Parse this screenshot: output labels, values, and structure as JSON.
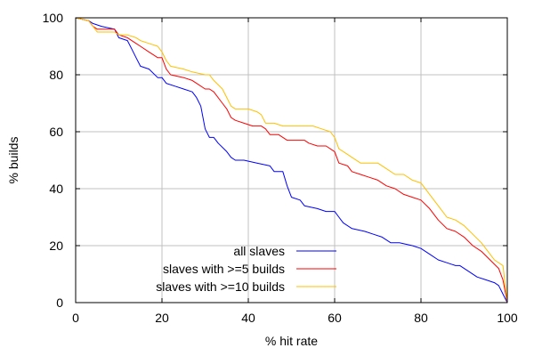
{
  "chart_data": {
    "type": "line",
    "xlabel": "% hit rate",
    "ylabel": "% builds",
    "xlim": [
      0,
      100
    ],
    "ylim": [
      0,
      100
    ],
    "x_ticks": [
      0,
      20,
      40,
      60,
      80,
      100
    ],
    "y_ticks": [
      0,
      20,
      40,
      60,
      80,
      100
    ],
    "grid": true,
    "legend_position": "bottom-center",
    "series": [
      {
        "name": "all slaves",
        "color": "#0000ff",
        "points": [
          [
            0,
            100
          ],
          [
            3,
            99
          ],
          [
            4,
            98
          ],
          [
            6,
            97
          ],
          [
            9,
            96
          ],
          [
            10,
            93
          ],
          [
            12,
            92
          ],
          [
            13,
            89
          ],
          [
            14,
            86
          ],
          [
            15,
            83
          ],
          [
            17,
            82
          ],
          [
            19,
            79
          ],
          [
            20,
            79
          ],
          [
            21,
            77
          ],
          [
            23,
            76
          ],
          [
            25,
            75
          ],
          [
            27,
            74
          ],
          [
            28,
            72
          ],
          [
            29,
            69
          ],
          [
            30,
            61
          ],
          [
            31,
            58
          ],
          [
            32,
            58
          ],
          [
            33,
            56
          ],
          [
            35,
            53
          ],
          [
            36,
            51
          ],
          [
            37,
            50
          ],
          [
            39,
            50
          ],
          [
            42,
            49
          ],
          [
            45,
            48
          ],
          [
            46,
            46
          ],
          [
            48,
            46
          ],
          [
            49,
            41
          ],
          [
            50,
            37
          ],
          [
            52,
            36
          ],
          [
            53,
            34
          ],
          [
            56,
            33
          ],
          [
            58,
            32
          ],
          [
            60,
            32
          ],
          [
            61,
            30
          ],
          [
            62,
            28
          ],
          [
            64,
            26
          ],
          [
            67,
            25
          ],
          [
            69,
            24
          ],
          [
            71,
            23
          ],
          [
            73,
            21
          ],
          [
            75,
            21
          ],
          [
            78,
            20
          ],
          [
            80,
            19
          ],
          [
            82,
            17
          ],
          [
            84,
            15
          ],
          [
            86,
            14
          ],
          [
            88,
            13
          ],
          [
            89,
            13
          ],
          [
            91,
            11
          ],
          [
            93,
            9
          ],
          [
            95,
            8
          ],
          [
            97,
            7
          ],
          [
            98,
            6
          ],
          [
            99,
            3
          ],
          [
            100,
            0
          ]
        ]
      },
      {
        "name": "slaves with >=5 builds",
        "color": "#ff0000",
        "points": [
          [
            0,
            100
          ],
          [
            3,
            99
          ],
          [
            4,
            97
          ],
          [
            5,
            96
          ],
          [
            9,
            96
          ],
          [
            10,
            94
          ],
          [
            12,
            93
          ],
          [
            14,
            91
          ],
          [
            15,
            90
          ],
          [
            17,
            88
          ],
          [
            18,
            87
          ],
          [
            19,
            86
          ],
          [
            20,
            86
          ],
          [
            21,
            82
          ],
          [
            22,
            80
          ],
          [
            25,
            79
          ],
          [
            27,
            78
          ],
          [
            28,
            77
          ],
          [
            30,
            75
          ],
          [
            31,
            75
          ],
          [
            32,
            74
          ],
          [
            34,
            70
          ],
          [
            35,
            68
          ],
          [
            36,
            65
          ],
          [
            37,
            64
          ],
          [
            39,
            63
          ],
          [
            41,
            62
          ],
          [
            43,
            62
          ],
          [
            44,
            61
          ],
          [
            45,
            59
          ],
          [
            47,
            59
          ],
          [
            49,
            57
          ],
          [
            53,
            57
          ],
          [
            54,
            56
          ],
          [
            56,
            55
          ],
          [
            58,
            55
          ],
          [
            60,
            53
          ],
          [
            61,
            49
          ],
          [
            63,
            48
          ],
          [
            64,
            46
          ],
          [
            66,
            45
          ],
          [
            68,
            44
          ],
          [
            70,
            43
          ],
          [
            72,
            41
          ],
          [
            74,
            40
          ],
          [
            76,
            38
          ],
          [
            78,
            37
          ],
          [
            80,
            36
          ],
          [
            82,
            33
          ],
          [
            84,
            29
          ],
          [
            86,
            26
          ],
          [
            88,
            25
          ],
          [
            90,
            23
          ],
          [
            92,
            20
          ],
          [
            94,
            18
          ],
          [
            96,
            15
          ],
          [
            98,
            12
          ],
          [
            99,
            8
          ],
          [
            100,
            0
          ]
        ]
      },
      {
        "name": "slaves with >=10 builds",
        "color": "#ffc000",
        "points": [
          [
            0,
            100
          ],
          [
            3,
            99
          ],
          [
            4,
            97
          ],
          [
            5,
            95
          ],
          [
            9,
            95
          ],
          [
            10,
            94
          ],
          [
            12,
            94
          ],
          [
            14,
            93
          ],
          [
            15,
            92
          ],
          [
            17,
            91
          ],
          [
            19,
            90
          ],
          [
            20,
            88
          ],
          [
            21,
            85
          ],
          [
            22,
            83
          ],
          [
            25,
            82
          ],
          [
            27,
            81
          ],
          [
            30,
            80
          ],
          [
            31,
            80
          ],
          [
            32,
            78
          ],
          [
            34,
            75
          ],
          [
            35,
            72
          ],
          [
            36,
            69
          ],
          [
            37,
            68
          ],
          [
            40,
            68
          ],
          [
            42,
            67
          ],
          [
            43,
            66
          ],
          [
            44,
            63
          ],
          [
            46,
            63
          ],
          [
            48,
            62
          ],
          [
            53,
            62
          ],
          [
            55,
            62
          ],
          [
            57,
            61
          ],
          [
            59,
            60
          ],
          [
            60,
            58
          ],
          [
            61,
            54
          ],
          [
            63,
            52
          ],
          [
            64,
            51
          ],
          [
            66,
            49
          ],
          [
            70,
            49
          ],
          [
            72,
            47
          ],
          [
            74,
            45
          ],
          [
            76,
            45
          ],
          [
            78,
            43
          ],
          [
            80,
            42
          ],
          [
            82,
            38
          ],
          [
            84,
            34
          ],
          [
            86,
            30
          ],
          [
            88,
            29
          ],
          [
            90,
            27
          ],
          [
            92,
            24
          ],
          [
            94,
            21
          ],
          [
            96,
            17
          ],
          [
            97,
            15
          ],
          [
            99,
            13
          ],
          [
            100,
            0
          ]
        ]
      }
    ]
  }
}
